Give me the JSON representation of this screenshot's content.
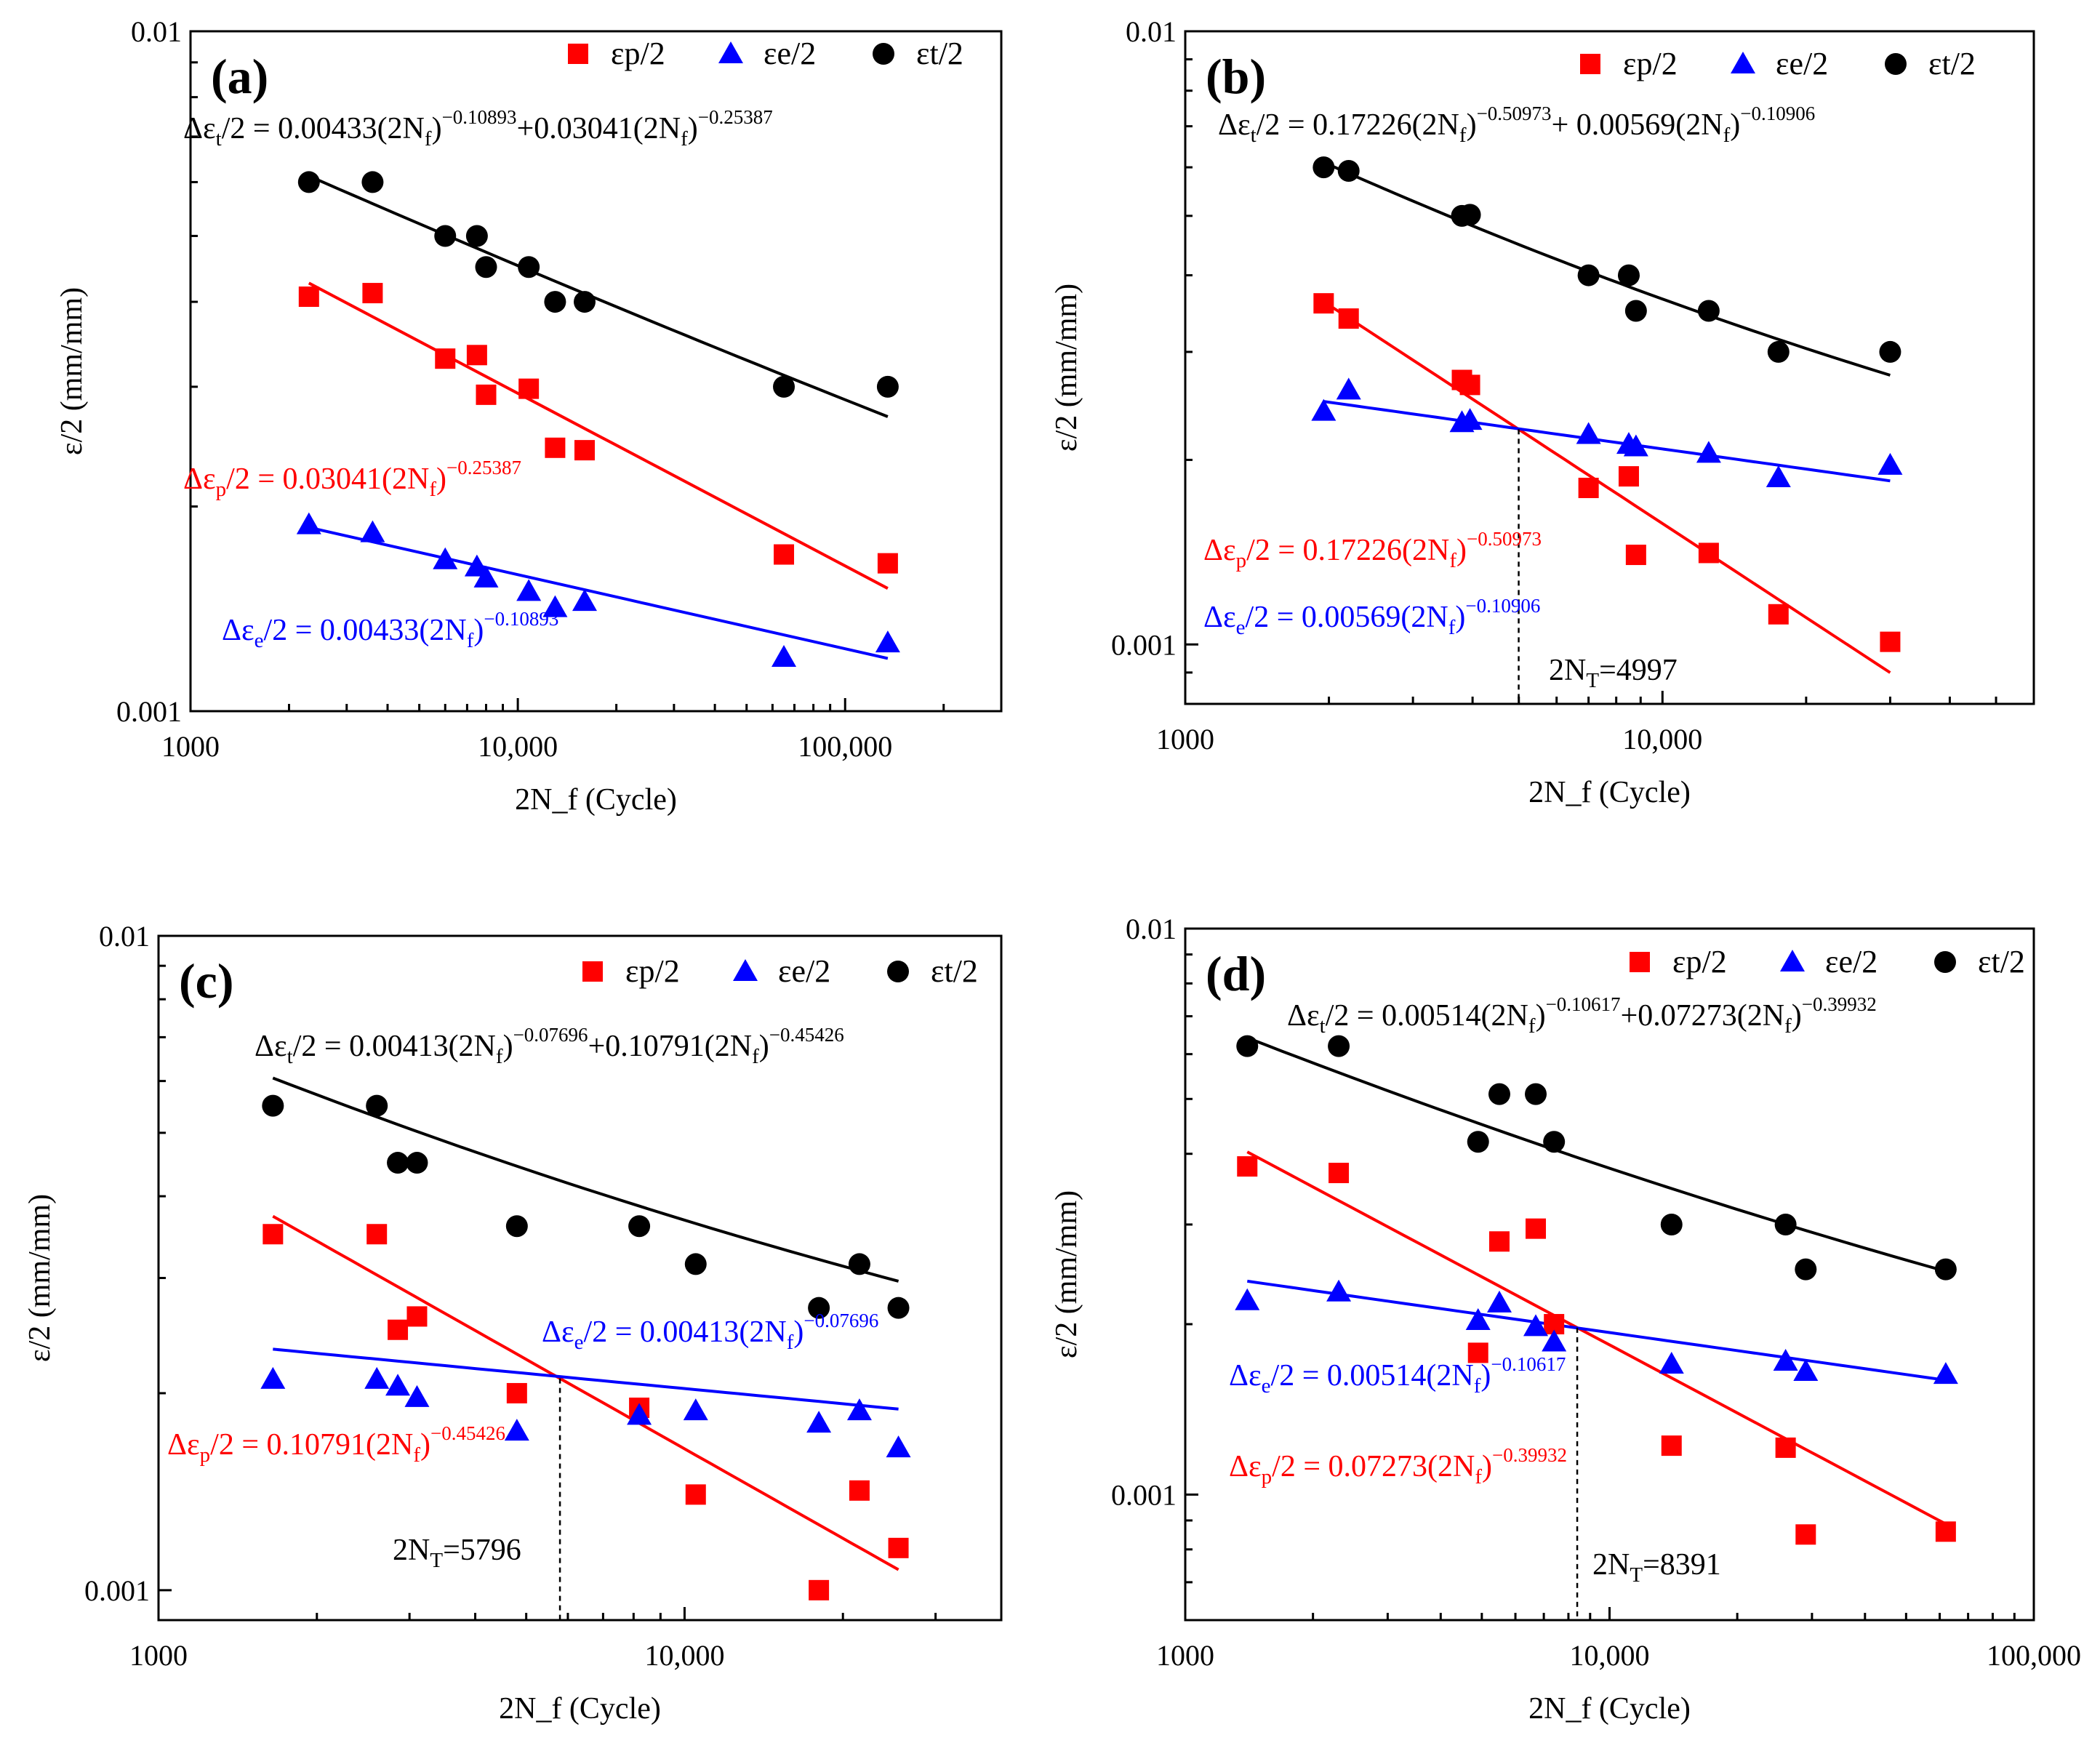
{
  "chart_data": [
    {
      "type": "scatter",
      "panel_label": "(a)",
      "xscale": "log",
      "yscale": "log",
      "xlim": [
        1000,
        300000
      ],
      "ylim": [
        0.001,
        0.01
      ],
      "xticks": [
        1000,
        10000,
        100000
      ],
      "xtick_labels": [
        "1000",
        "10,000",
        "100,000"
      ],
      "yticks": [
        0.001,
        0.01
      ],
      "ytick_labels": [
        "0.001",
        "0.01"
      ],
      "xlabel": "2N_f (Cycle)",
      "ylabel": "ε/2 (mm/mm)",
      "legend": {
        "placement": "top-right",
        "entries": [
          "εp/2",
          "εe/2",
          "εt/2"
        ]
      },
      "series": [
        {
          "name": "εp/2",
          "color": "#ff0000",
          "marker": "square",
          "points": [
            [
              2300,
              0.00407
            ],
            [
              3600,
              0.00412
            ],
            [
              6000,
              0.0033
            ],
            [
              7500,
              0.00334
            ],
            [
              8000,
              0.00292
            ],
            [
              10800,
              0.00298
            ],
            [
              13000,
              0.00244
            ],
            [
              16000,
              0.00242
            ],
            [
              65000,
              0.0017
            ],
            [
              135000,
              0.00165
            ]
          ],
          "fit": {
            "coef": 0.03041,
            "exp": -0.25387,
            "xrange": [
              2300,
              135000
            ]
          }
        },
        {
          "name": "εe/2",
          "color": "#0000ff",
          "marker": "triangle",
          "points": [
            [
              2300,
              0.00188
            ],
            [
              3600,
              0.00183
            ],
            [
              6000,
              0.00167
            ],
            [
              7500,
              0.00163
            ],
            [
              8000,
              0.00157
            ],
            [
              10800,
              0.0015
            ],
            [
              13000,
              0.00142
            ],
            [
              16000,
              0.00145
            ],
            [
              65000,
              0.0012
            ],
            [
              135000,
              0.00126
            ]
          ],
          "fit": {
            "coef": 0.00433,
            "exp": -0.10893,
            "xrange": [
              2300,
              135000
            ]
          }
        },
        {
          "name": "εt/2",
          "color": "#000000",
          "marker": "circle",
          "points": [
            [
              2300,
              0.006
            ],
            [
              3600,
              0.006
            ],
            [
              6000,
              0.005
            ],
            [
              7500,
              0.005
            ],
            [
              8000,
              0.0045
            ],
            [
              10800,
              0.0045
            ],
            [
              13000,
              0.004
            ],
            [
              16000,
              0.004
            ],
            [
              65000,
              0.003
            ],
            [
              135000,
              0.003
            ]
          ],
          "fit": {
            "sum": true,
            "xrange": [
              2300,
              135000
            ]
          }
        }
      ],
      "equations": {
        "total": {
          "pre": "Δε",
          "sub": "t",
          "mid": "/2 = 0.00433(2N",
          "sub2": "f",
          "close": ")",
          "sup": "−0.10893",
          "mid2": "+0.03041(2N",
          "sub3": "f",
          "close2": ")",
          "sup2": "−0.25387"
        },
        "plastic": {
          "pre": "Δε",
          "sub": "p",
          "mid": "/2 = 0.03041(2N",
          "sub2": "f",
          "close": ")",
          "sup": "−0.25387"
        },
        "elastic": {
          "pre": "Δε",
          "sub": "e",
          "mid": "/2 = 0.00433(2N",
          "sub2": "f",
          "close": ")",
          "sup": "−0.10893"
        }
      }
    },
    {
      "type": "scatter",
      "panel_label": "(b)",
      "xscale": "log",
      "yscale": "log",
      "xlim": [
        1000,
        60000
      ],
      "ylim": [
        0.0008,
        0.01
      ],
      "xticks": [
        1000,
        10000
      ],
      "xtick_labels": [
        "1000",
        "10,000"
      ],
      "yticks": [
        0.001,
        0.01
      ],
      "ytick_labels": [
        "0.001",
        "0.01"
      ],
      "xlabel": "2N_f (Cycle)",
      "ylabel": "ε/2 (mm/mm)",
      "legend": {
        "placement": "top-right",
        "entries": [
          "εp/2",
          "εe/2",
          "εt/2"
        ]
      },
      "transition": {
        "value": 4997,
        "label_pre": "2N",
        "label_sub": "T",
        "label_post": "=4997"
      },
      "series": [
        {
          "name": "εp/2",
          "color": "#ff0000",
          "marker": "square",
          "points": [
            [
              1950,
              0.0036
            ],
            [
              2200,
              0.0034
            ],
            [
              3800,
              0.0027
            ],
            [
              3950,
              0.00265
            ],
            [
              7000,
              0.0018
            ],
            [
              8500,
              0.00188
            ],
            [
              8800,
              0.0014
            ],
            [
              12500,
              0.00141
            ],
            [
              17500,
              0.00112
            ],
            [
              30000,
              0.00101
            ]
          ],
          "fit": {
            "coef": 0.17226,
            "exp": -0.50973,
            "xrange": [
              1950,
              30000
            ]
          }
        },
        {
          "name": "εe/2",
          "color": "#0000ff",
          "marker": "triangle",
          "points": [
            [
              1950,
              0.0024
            ],
            [
              2200,
              0.0026
            ],
            [
              3800,
              0.0023
            ],
            [
              3950,
              0.00232
            ],
            [
              7000,
              0.0022
            ],
            [
              8500,
              0.00212
            ],
            [
              8800,
              0.0021
            ],
            [
              12500,
              0.00205
            ],
            [
              17500,
              0.00187
            ],
            [
              30000,
              0.00196
            ]
          ],
          "fit": {
            "coef": 0.00569,
            "exp": -0.10906,
            "xrange": [
              1950,
              30000
            ]
          }
        },
        {
          "name": "εt/2",
          "color": "#000000",
          "marker": "circle",
          "points": [
            [
              1950,
              0.006
            ],
            [
              2200,
              0.00592
            ],
            [
              3800,
              0.005
            ],
            [
              3950,
              0.00502
            ],
            [
              7000,
              0.004
            ],
            [
              8500,
              0.004
            ],
            [
              8800,
              0.0035
            ],
            [
              12500,
              0.0035
            ],
            [
              17500,
              0.003
            ],
            [
              30000,
              0.003
            ]
          ],
          "fit": {
            "sum": true,
            "xrange": [
              1950,
              30000
            ]
          }
        }
      ],
      "equations": {
        "total": {
          "pre": "Δε",
          "sub": "t",
          "mid": "/2 = 0.17226(2N",
          "sub2": "f",
          "close": ")",
          "sup": "−0.50973",
          "mid2": "+ 0.00569(2N",
          "sub3": "f",
          "close2": ")",
          "sup2": "−0.10906"
        },
        "plastic": {
          "pre": "Δε",
          "sub": "p",
          "mid": "/2 = 0.17226(2N",
          "sub2": "f",
          "close": ")",
          "sup": "−0.50973"
        },
        "elastic": {
          "pre": "Δε",
          "sub": "e",
          "mid": "/2 = 0.00569(2N",
          "sub2": "f",
          "close": ")",
          "sup": "−0.10906"
        }
      }
    },
    {
      "type": "scatter",
      "panel_label": "(c)",
      "xscale": "log",
      "yscale": "log",
      "xlim": [
        1000,
        40000
      ],
      "ylim": [
        0.0009,
        0.01
      ],
      "xticks": [
        1000,
        10000
      ],
      "xtick_labels": [
        "1000",
        "10,000"
      ],
      "yticks": [
        0.001,
        0.01
      ],
      "ytick_labels": [
        "0.001",
        "0.01"
      ],
      "xlabel": "2N_f (Cycle)",
      "ylabel": "ε/2 (mm/mm)",
      "legend": {
        "placement": "top-right",
        "entries": [
          "εp/2",
          "εe/2",
          "εt/2"
        ]
      },
      "transition": {
        "value": 5796,
        "label_pre": "2N",
        "label_sub": "T",
        "label_post": "=5796"
      },
      "series": [
        {
          "name": "εp/2",
          "color": "#ff0000",
          "marker": "square",
          "points": [
            [
              1650,
              0.0035
            ],
            [
              2600,
              0.0035
            ],
            [
              2850,
              0.0025
            ],
            [
              3100,
              0.00262
            ],
            [
              4800,
              0.002
            ],
            [
              8200,
              0.0019
            ],
            [
              10500,
              0.0014
            ],
            [
              18000,
              0.001
            ],
            [
              21500,
              0.00142
            ],
            [
              25500,
              0.00116
            ]
          ],
          "fit": {
            "coef": 0.10791,
            "exp": -0.45426,
            "xrange": [
              1650,
              25500
            ]
          }
        },
        {
          "name": "εe/2",
          "color": "#0000ff",
          "marker": "triangle",
          "points": [
            [
              1650,
              0.0021
            ],
            [
              2600,
              0.0021
            ],
            [
              2850,
              0.00205
            ],
            [
              3100,
              0.00197
            ],
            [
              4800,
              0.00175
            ],
            [
              8200,
              0.00185
            ],
            [
              10500,
              0.00188
            ],
            [
              18000,
              0.0018
            ],
            [
              21500,
              0.00188
            ],
            [
              25500,
              0.00165
            ]
          ],
          "fit": {
            "coef": 0.00413,
            "exp": -0.07696,
            "xrange": [
              1650,
              25500
            ]
          }
        },
        {
          "name": "εt/2",
          "color": "#000000",
          "marker": "circle",
          "points": [
            [
              1650,
              0.0055
            ],
            [
              2600,
              0.0055
            ],
            [
              2850,
              0.0045
            ],
            [
              3100,
              0.0045
            ],
            [
              4800,
              0.0036
            ],
            [
              8200,
              0.0036
            ],
            [
              10500,
              0.00315
            ],
            [
              18000,
              0.0027
            ],
            [
              21500,
              0.00315
            ],
            [
              25500,
              0.0027
            ]
          ],
          "fit": {
            "sum": true,
            "xrange": [
              1650,
              25500
            ]
          }
        }
      ],
      "equations": {
        "total": {
          "pre": "Δε",
          "sub": "t",
          "mid": "/2 = 0.00413(2N",
          "sub2": "f",
          "close": ")",
          "sup": "−0.07696",
          "mid2": "+0.10791(2N",
          "sub3": "f",
          "close2": ")",
          "sup2": "−0.45426"
        },
        "plastic": {
          "pre": "Δε",
          "sub": "p",
          "mid": "/2 = 0.10791(2N",
          "sub2": "f",
          "close": ")",
          "sup": "−0.45426"
        },
        "elastic": {
          "pre": "Δε",
          "sub": "e",
          "mid": "/2 = 0.00413(2N",
          "sub2": "f",
          "close": ")",
          "sup": "−0.07696"
        }
      }
    },
    {
      "type": "scatter",
      "panel_label": "(d)",
      "xscale": "log",
      "yscale": "log",
      "xlim": [
        1000,
        100000
      ],
      "ylim": [
        0.0006,
        0.01
      ],
      "xticks": [
        1000,
        10000,
        100000
      ],
      "xtick_labels": [
        "1000",
        "10,000",
        "100,000"
      ],
      "yticks": [
        0.001,
        0.01
      ],
      "ytick_labels": [
        "0.001",
        "0.01"
      ],
      "xlabel": "2N_f (Cycle)",
      "ylabel": "ε/2 (mm/mm)",
      "legend": {
        "placement": "top-right",
        "entries": [
          "εp/2",
          "εe/2",
          "εt/2"
        ]
      },
      "transition": {
        "value": 8391,
        "label_pre": "2N",
        "label_sub": "T",
        "label_post": "=8391"
      },
      "series": [
        {
          "name": "εp/2",
          "color": "#ff0000",
          "marker": "square",
          "points": [
            [
              1400,
              0.0038
            ],
            [
              2300,
              0.0037
            ],
            [
              4900,
              0.00178
            ],
            [
              5500,
              0.0028
            ],
            [
              6700,
              0.00295
            ],
            [
              7400,
              0.002
            ],
            [
              14000,
              0.00122
            ],
            [
              26000,
              0.00121
            ],
            [
              29000,
              0.00085
            ],
            [
              62000,
              0.00086
            ]
          ],
          "fit": {
            "coef": 0.07273,
            "exp": -0.39932,
            "xrange": [
              1400,
              62000
            ]
          }
        },
        {
          "name": "εe/2",
          "color": "#0000ff",
          "marker": "triangle",
          "points": [
            [
              1400,
              0.0022
            ],
            [
              2300,
              0.00228
            ],
            [
              4900,
              0.00203
            ],
            [
              5500,
              0.00218
            ],
            [
              6700,
              0.00198
            ],
            [
              7400,
              0.00186
            ],
            [
              14000,
              0.0017
            ],
            [
              26000,
              0.00172
            ],
            [
              29000,
              0.00165
            ],
            [
              62000,
              0.00163
            ]
          ],
          "fit": {
            "coef": 0.00514,
            "exp": -0.10617,
            "xrange": [
              1400,
              62000
            ]
          }
        },
        {
          "name": "εt/2",
          "color": "#000000",
          "marker": "circle",
          "points": [
            [
              1400,
              0.0062
            ],
            [
              2300,
              0.0062
            ],
            [
              4900,
              0.0042
            ],
            [
              5500,
              0.0051
            ],
            [
              6700,
              0.0051
            ],
            [
              7400,
              0.0042
            ],
            [
              14000,
              0.003
            ],
            [
              26000,
              0.003
            ],
            [
              29000,
              0.0025
            ],
            [
              62000,
              0.0025
            ]
          ],
          "fit": {
            "sum": true,
            "xrange": [
              1400,
              62000
            ]
          }
        }
      ],
      "equations": {
        "total": {
          "pre": "Δε",
          "sub": "t",
          "mid": "/2 = 0.00514(2N",
          "sub2": "f",
          "close": ")",
          "sup": "−0.10617",
          "mid2": "+0.07273(2N",
          "sub3": "f",
          "close2": ")",
          "sup2": "−0.39932"
        },
        "plastic": {
          "pre": "Δε",
          "sub": "p",
          "mid": "/2 = 0.07273(2N",
          "sub2": "f",
          "close": ")",
          "sup": "−0.39932"
        },
        "elastic": {
          "pre": "Δε",
          "sub": "e",
          "mid": "/2 = 0.00514(2N",
          "sub2": "f",
          "close": ")",
          "sup": "−0.10617"
        }
      }
    }
  ]
}
